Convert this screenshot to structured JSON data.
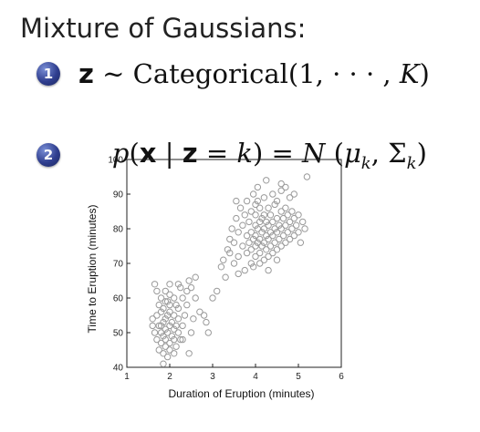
{
  "slide": {
    "title": "Mixture of Gaussians:",
    "bullets": [
      {
        "number": "1"
      },
      {
        "number": "2"
      }
    ],
    "eq1": {
      "z": "z",
      "sim": "∼",
      "dist": "Categorical",
      "args": "(1, · · · , ",
      "K": "K",
      "close": ")"
    },
    "eq2": {
      "p": "p",
      "open": "(",
      "x": "x",
      "bar": " | ",
      "z": "z",
      "eq": " = ",
      "k": "k",
      "close": ")",
      "equals": " = ",
      "N": "N",
      "args_open": " (",
      "mu": "μ",
      "mu_sub": "k",
      "comma": ", ",
      "Sigma": "Σ",
      "sigma_sub": "k",
      "args_close": ")"
    }
  },
  "chart_data": {
    "type": "scatter",
    "title": "",
    "xlabel": "Duration of Eruption (minutes)",
    "ylabel": "Time to Eruption (minutes)",
    "xlim": [
      1,
      6
    ],
    "ylim": [
      40,
      100
    ],
    "xticks": [
      1,
      2,
      3,
      4,
      5,
      6
    ],
    "yticks": [
      40,
      50,
      60,
      70,
      80,
      90,
      100
    ],
    "grid": false,
    "marker_color": "#9a9a9a",
    "points": [
      [
        1.6,
        52
      ],
      [
        1.6,
        54
      ],
      [
        1.65,
        50
      ],
      [
        1.7,
        48
      ],
      [
        1.7,
        55
      ],
      [
        1.75,
        45
      ],
      [
        1.75,
        58
      ],
      [
        1.8,
        47
      ],
      [
        1.8,
        50
      ],
      [
        1.8,
        52
      ],
      [
        1.8,
        56
      ],
      [
        1.8,
        60
      ],
      [
        1.85,
        44
      ],
      [
        1.85,
        49
      ],
      [
        1.85,
        53
      ],
      [
        1.85,
        57
      ],
      [
        1.9,
        46
      ],
      [
        1.9,
        48
      ],
      [
        1.9,
        51
      ],
      [
        1.9,
        54
      ],
      [
        1.9,
        59
      ],
      [
        1.9,
        62
      ],
      [
        1.95,
        43
      ],
      [
        1.95,
        50
      ],
      [
        1.95,
        55
      ],
      [
        2.0,
        45
      ],
      [
        2.0,
        47
      ],
      [
        2.0,
        52
      ],
      [
        2.0,
        56
      ],
      [
        2.0,
        58
      ],
      [
        2.0,
        61
      ],
      [
        2.05,
        49
      ],
      [
        2.05,
        53
      ],
      [
        2.1,
        44
      ],
      [
        2.1,
        48
      ],
      [
        2.1,
        51
      ],
      [
        2.1,
        55
      ],
      [
        2.1,
        60
      ],
      [
        2.15,
        46
      ],
      [
        2.15,
        52
      ],
      [
        2.2,
        50
      ],
      [
        2.2,
        54
      ],
      [
        2.2,
        57
      ],
      [
        2.25,
        48
      ],
      [
        2.25,
        63
      ],
      [
        1.7,
        62
      ],
      [
        1.65,
        64
      ],
      [
        1.75,
        52
      ],
      [
        1.85,
        41
      ],
      [
        1.95,
        59
      ],
      [
        2.0,
        64
      ],
      [
        2.15,
        58
      ],
      [
        2.3,
        52
      ],
      [
        2.3,
        60
      ],
      [
        2.35,
        55
      ],
      [
        2.4,
        58
      ],
      [
        2.4,
        62
      ],
      [
        2.45,
        65
      ],
      [
        2.5,
        50
      ],
      [
        2.5,
        63
      ],
      [
        2.55,
        54
      ],
      [
        2.6,
        60
      ],
      [
        2.6,
        66
      ],
      [
        2.7,
        56
      ],
      [
        2.8,
        55
      ],
      [
        2.85,
        53
      ],
      [
        2.9,
        50
      ],
      [
        2.3,
        48
      ],
      [
        2.45,
        44
      ],
      [
        2.2,
        64
      ],
      [
        3.0,
        60
      ],
      [
        3.1,
        62
      ],
      [
        3.2,
        69
      ],
      [
        3.3,
        66
      ],
      [
        3.35,
        74
      ],
      [
        3.4,
        77
      ],
      [
        3.45,
        80
      ],
      [
        3.5,
        70
      ],
      [
        3.5,
        76
      ],
      [
        3.55,
        83
      ],
      [
        3.6,
        72
      ],
      [
        3.6,
        79
      ],
      [
        3.65,
        86
      ],
      [
        3.7,
        75
      ],
      [
        3.7,
        81
      ],
      [
        3.75,
        68
      ],
      [
        3.75,
        84
      ],
      [
        3.8,
        73
      ],
      [
        3.8,
        78
      ],
      [
        3.8,
        88
      ],
      [
        3.85,
        76
      ],
      [
        3.85,
        82
      ],
      [
        3.9,
        70
      ],
      [
        3.9,
        74
      ],
      [
        3.9,
        79
      ],
      [
        3.9,
        85
      ],
      [
        3.95,
        77
      ],
      [
        3.95,
        90
      ],
      [
        4.0,
        72
      ],
      [
        4.0,
        75
      ],
      [
        4.0,
        78
      ],
      [
        4.0,
        81
      ],
      [
        4.0,
        84
      ],
      [
        4.0,
        87
      ],
      [
        4.05,
        76
      ],
      [
        4.05,
        80
      ],
      [
        4.05,
        92
      ],
      [
        4.1,
        73
      ],
      [
        4.1,
        77
      ],
      [
        4.1,
        82
      ],
      [
        4.1,
        86
      ],
      [
        4.15,
        75
      ],
      [
        4.15,
        79
      ],
      [
        4.15,
        83
      ],
      [
        4.2,
        71
      ],
      [
        4.2,
        76
      ],
      [
        4.2,
        80
      ],
      [
        4.2,
        84
      ],
      [
        4.2,
        89
      ],
      [
        4.25,
        74
      ],
      [
        4.25,
        78
      ],
      [
        4.25,
        82
      ],
      [
        4.3,
        72
      ],
      [
        4.3,
        77
      ],
      [
        4.3,
        81
      ],
      [
        4.3,
        86
      ],
      [
        4.35,
        75
      ],
      [
        4.35,
        79
      ],
      [
        4.35,
        84
      ],
      [
        4.4,
        73
      ],
      [
        4.4,
        78
      ],
      [
        4.4,
        82
      ],
      [
        4.4,
        90
      ],
      [
        4.45,
        76
      ],
      [
        4.45,
        80
      ],
      [
        4.45,
        87
      ],
      [
        4.5,
        74
      ],
      [
        4.5,
        79
      ],
      [
        4.5,
        83
      ],
      [
        4.5,
        88
      ],
      [
        4.55,
        77
      ],
      [
        4.55,
        81
      ],
      [
        4.6,
        75
      ],
      [
        4.6,
        80
      ],
      [
        4.6,
        85
      ],
      [
        4.6,
        91
      ],
      [
        4.65,
        78
      ],
      [
        4.65,
        83
      ],
      [
        4.7,
        76
      ],
      [
        4.7,
        81
      ],
      [
        4.7,
        86
      ],
      [
        4.75,
        79
      ],
      [
        4.75,
        84
      ],
      [
        4.8,
        77
      ],
      [
        4.8,
        82
      ],
      [
        4.8,
        89
      ],
      [
        4.85,
        80
      ],
      [
        4.85,
        85
      ],
      [
        4.9,
        78
      ],
      [
        4.9,
        83
      ],
      [
        4.95,
        81
      ],
      [
        5.0,
        79
      ],
      [
        5.0,
        84
      ],
      [
        5.05,
        76
      ],
      [
        5.1,
        82
      ],
      [
        5.15,
        80
      ],
      [
        5.2,
        95
      ],
      [
        4.25,
        94
      ],
      [
        4.9,
        90
      ],
      [
        4.7,
        92
      ],
      [
        3.95,
        69
      ],
      [
        4.1,
        70
      ],
      [
        4.3,
        68
      ],
      [
        4.5,
        71
      ],
      [
        3.6,
        67
      ],
      [
        3.4,
        73
      ],
      [
        3.25,
        71
      ],
      [
        3.55,
        88
      ],
      [
        4.6,
        93
      ],
      [
        4.05,
        88
      ]
    ]
  }
}
